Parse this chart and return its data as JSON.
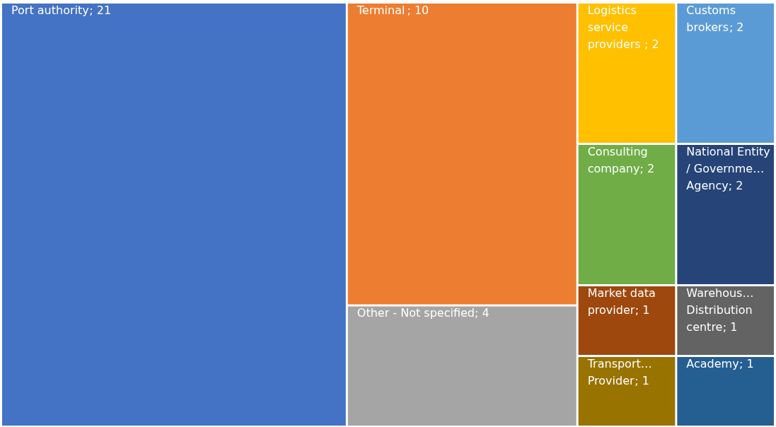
{
  "chart_data": {
    "type": "other",
    "categories": [
      "Port authority",
      "Terminal",
      "Other - Not specified",
      "Logistics service providers ",
      "Customs brokers",
      "Consulting company",
      "National Entity / Governme… Agency",
      "Market data provider",
      "Transport… Provider",
      "Warehous… Distribution centre",
      "Academy"
    ],
    "values": [
      21,
      10,
      4,
      2,
      2,
      2,
      2,
      1,
      1,
      1,
      1
    ],
    "colors": [
      "#4472c4",
      "#ed7d31",
      "#a5a5a5",
      "#ffc000",
      "#5b9bd5",
      "#70ad47",
      "#264478",
      "#9e480e",
      "#997300",
      "#636363",
      "#255e91"
    ],
    "value_labels": [
      "; 21",
      "; 10",
      "; 4",
      "; 2",
      "; 2",
      "; 2",
      "; 2",
      "; 1",
      "; 1",
      "; 1",
      "; 1"
    ]
  }
}
